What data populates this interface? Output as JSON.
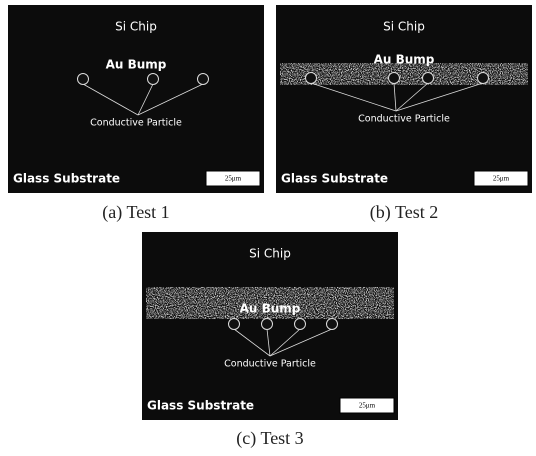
{
  "panels": [
    {
      "si_chip": "Si Chip",
      "au_bump": "Au Bump",
      "particle": "Conductive Particle",
      "substrate": "Glass Substrate",
      "scale": "25μm",
      "caption": "(a) Test 1"
    },
    {
      "si_chip": "Si Chip",
      "au_bump": "Au Bump",
      "particle": "Conductive Particle",
      "substrate": "Glass Substrate",
      "scale": "25μm",
      "caption": "(b) Test 2"
    },
    {
      "si_chip": "Si Chip",
      "au_bump": "Au Bump",
      "particle": "Conductive Particle",
      "substrate": "Glass Substrate",
      "scale": "25μm",
      "caption": "(c) Test 3"
    }
  ]
}
